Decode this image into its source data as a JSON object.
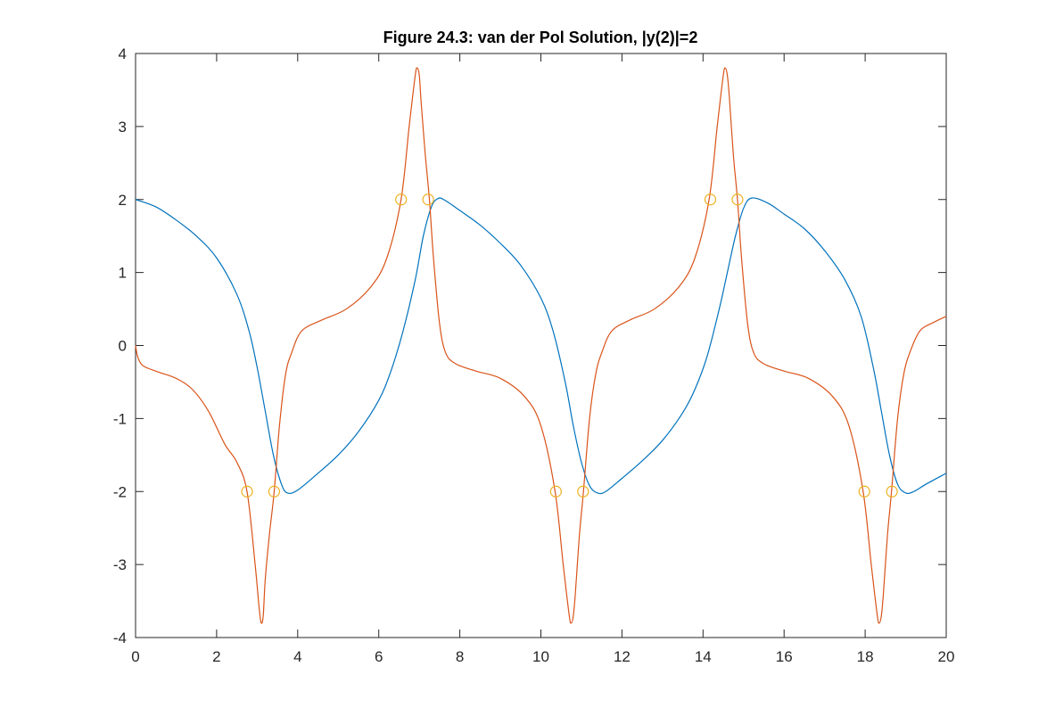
{
  "colors": {
    "background": "#ffffff",
    "axes": "#262626",
    "series1": "#0072BD",
    "series2": "#D95319",
    "markers": "#EDB120"
  },
  "chart_data": {
    "type": "line",
    "title": "Figure 24.3: van der Pol Solution, |y(2)|=2",
    "xlabel": "",
    "ylabel": "",
    "xlim": [
      0,
      20
    ],
    "ylim": [
      -4,
      4
    ],
    "xticks": [
      0,
      2,
      4,
      6,
      8,
      10,
      12,
      14,
      16,
      18,
      20
    ],
    "yticks": [
      -4,
      -3,
      -2,
      -1,
      0,
      1,
      2,
      3,
      4
    ],
    "grid": false,
    "legend": "none",
    "series": [
      {
        "color": "#0072BD",
        "x": [
          0,
          0.5,
          1,
          1.5,
          2,
          2.5,
          2.8,
          3.0,
          3.2,
          3.4,
          3.6,
          3.75,
          4.0,
          4.5,
          5,
          5.5,
          6,
          6.3,
          6.6,
          6.9,
          7.1,
          7.3,
          7.45,
          7.6,
          8,
          8.5,
          9,
          9.5,
          10,
          10.3,
          10.6,
          10.8,
          11.0,
          11.2,
          11.4,
          11.6,
          12,
          12.5,
          13,
          13.5,
          13.8,
          14.1,
          14.4,
          14.6,
          14.8,
          15.0,
          15.2,
          15.6,
          16,
          16.5,
          17,
          17.5,
          17.9,
          18.2,
          18.4,
          18.6,
          18.8,
          19.0,
          19.2,
          19.5,
          20
        ],
        "y": [
          2.0,
          1.9,
          1.72,
          1.5,
          1.2,
          0.7,
          0.2,
          -0.3,
          -0.9,
          -1.5,
          -1.9,
          -2.02,
          -1.98,
          -1.75,
          -1.5,
          -1.18,
          -0.75,
          -0.35,
          0.2,
          0.9,
          1.5,
          1.9,
          2.01,
          2.0,
          1.85,
          1.65,
          1.4,
          1.1,
          0.65,
          0.2,
          -0.5,
          -1.1,
          -1.6,
          -1.92,
          -2.02,
          -2.0,
          -1.82,
          -1.58,
          -1.3,
          -0.92,
          -0.6,
          -0.15,
          0.5,
          1.0,
          1.5,
          1.88,
          2.02,
          1.95,
          1.8,
          1.6,
          1.3,
          0.9,
          0.4,
          -0.3,
          -0.9,
          -1.5,
          -1.9,
          -2.02,
          -2.0,
          -1.9,
          -1.75
        ]
      },
      {
        "color": "#D95319",
        "x": [
          0,
          0.05,
          0.15,
          0.3,
          0.6,
          1.0,
          1.4,
          1.8,
          2.2,
          2.5,
          2.75,
          2.95,
          3.05,
          3.1,
          3.15,
          3.2,
          3.3,
          3.42,
          3.55,
          3.7,
          3.85,
          4.1,
          4.6,
          5.2,
          5.8,
          6.2,
          6.55,
          6.75,
          6.9,
          6.95,
          7.0,
          7.05,
          7.15,
          7.25,
          7.35,
          7.5,
          7.65,
          7.9,
          8.4,
          9.0,
          9.6,
          10.0,
          10.35,
          10.55,
          10.7,
          10.75,
          10.8,
          10.85,
          10.95,
          11.05,
          11.2,
          11.35,
          11.5,
          11.75,
          12.2,
          12.8,
          13.4,
          13.8,
          14.15,
          14.35,
          14.5,
          14.55,
          14.6,
          14.65,
          14.75,
          14.85,
          14.95,
          15.1,
          15.25,
          15.5,
          16.0,
          16.6,
          17.2,
          17.6,
          17.95,
          18.15,
          18.3,
          18.35,
          18.4,
          18.45,
          18.55,
          18.65,
          18.8,
          18.95,
          19.1,
          19.35,
          19.7,
          20
        ],
        "y": [
          0.0,
          -0.15,
          -0.26,
          -0.31,
          -0.37,
          -0.45,
          -0.6,
          -0.9,
          -1.35,
          -1.6,
          -2.0,
          -3.0,
          -3.6,
          -3.8,
          -3.7,
          -3.2,
          -2.6,
          -2.0,
          -1.1,
          -0.4,
          -0.1,
          0.2,
          0.35,
          0.5,
          0.8,
          1.2,
          2.0,
          3.0,
          3.7,
          3.8,
          3.7,
          3.3,
          2.6,
          2.0,
          1.2,
          0.3,
          -0.1,
          -0.25,
          -0.35,
          -0.45,
          -0.7,
          -1.1,
          -2.0,
          -3.0,
          -3.7,
          -3.8,
          -3.7,
          -3.4,
          -2.6,
          -2.0,
          -1.0,
          -0.4,
          -0.1,
          0.2,
          0.35,
          0.5,
          0.8,
          1.2,
          2.0,
          3.0,
          3.7,
          3.8,
          3.7,
          3.4,
          2.6,
          2.0,
          1.2,
          0.3,
          -0.1,
          -0.25,
          -0.35,
          -0.45,
          -0.7,
          -1.1,
          -2.0,
          -3.0,
          -3.7,
          -3.8,
          -3.7,
          -3.4,
          -2.6,
          -2.0,
          -1.0,
          -0.4,
          -0.1,
          0.2,
          0.32,
          0.4
        ]
      },
      {
        "color": "#EDB120",
        "marker": "circle",
        "x": [
          2.75,
          3.42,
          6.55,
          7.22,
          10.37,
          11.04,
          14.18,
          14.85,
          17.98,
          18.66
        ],
        "y": [
          -2,
          -2,
          2,
          2,
          -2,
          -2,
          2,
          2,
          -2,
          -2
        ]
      }
    ]
  }
}
